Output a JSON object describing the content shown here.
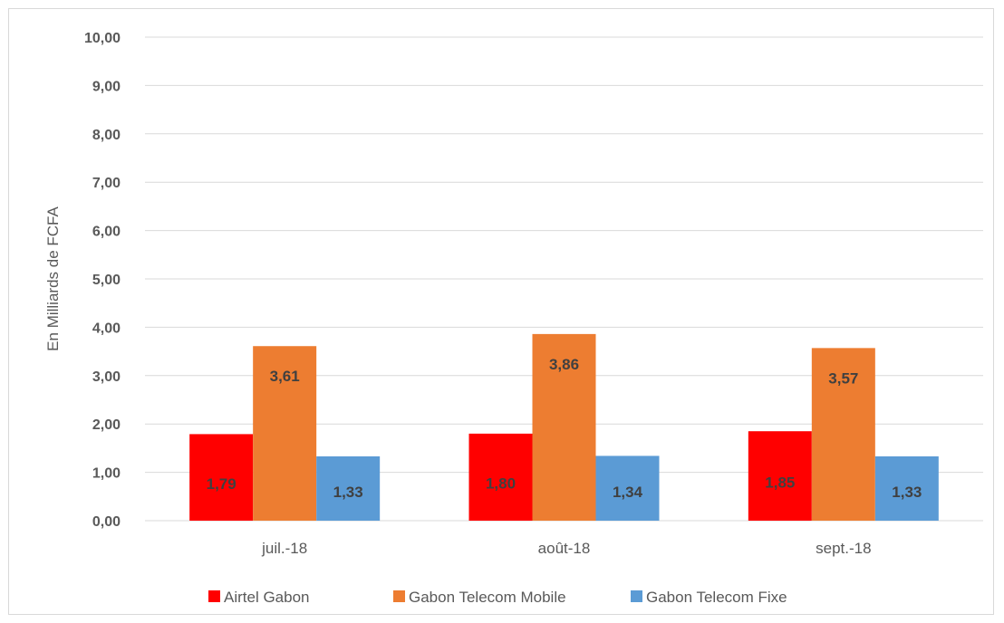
{
  "chart_data": {
    "type": "bar",
    "categories": [
      "juil.-18",
      "août-18",
      "sept.-18"
    ],
    "series": [
      {
        "name": "Airtel Gabon",
        "color": "#ff0000",
        "values": [
          1.79,
          1.8,
          1.85
        ],
        "labels": [
          "1,79",
          "1,80",
          "1,85"
        ]
      },
      {
        "name": "Gabon Telecom Mobile",
        "color": "#ed7d31",
        "values": [
          3.61,
          3.86,
          3.57
        ],
        "labels": [
          "3,61",
          "3,86",
          "3,57"
        ]
      },
      {
        "name": "Gabon Telecom Fixe",
        "color": "#5b9bd5",
        "values": [
          1.33,
          1.34,
          1.33
        ],
        "labels": [
          "1,33",
          "1,34",
          "1,33"
        ]
      }
    ],
    "ylabel": "En Milliards de FCFA",
    "ylim": [
      0,
      10
    ],
    "yticks": [
      "0,00",
      "1,00",
      "2,00",
      "3,00",
      "4,00",
      "5,00",
      "6,00",
      "7,00",
      "8,00",
      "9,00",
      "10,00"
    ],
    "grid": true,
    "legend": "bottom"
  }
}
